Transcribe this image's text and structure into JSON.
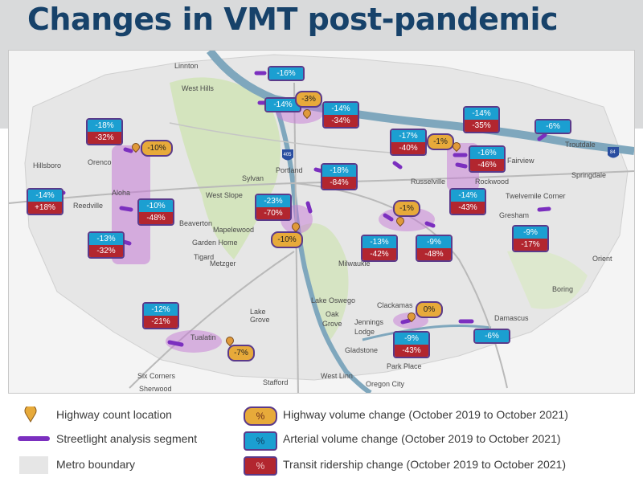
{
  "title": "Changes in VMT post-pandemic",
  "places": {
    "linnton": "Linnton",
    "west_hills": "West Hills",
    "hillsboro": "Hillsboro",
    "orenco": "Orenco",
    "aloha": "Aloha",
    "reedville": "Reedville",
    "beaverton": "Beaverton",
    "west_slope": "West Slope",
    "sylvan": "Sylvan",
    "portland": "Portland",
    "mapelewood": "Mapelewood",
    "garden_home": "Garden Home",
    "metzger": "Metzger",
    "tigard": "Tigard",
    "tualatin": "Tualatin",
    "lake_grove": "Lake\nGrove",
    "lake_oswego": "Lake Oswego",
    "oak_grove": "Oak\nGrove",
    "milwaukie": "Milwaukie",
    "russelville": "Russelville",
    "rockwood": "Rockwood",
    "fairview": "Fairview",
    "troutdale": "Troutdale",
    "springdale": "Springdale",
    "twelvemile_corner": "Twelvemile Corner",
    "gresham": "Gresham",
    "orient": "Orient",
    "boring": "Boring",
    "damascus": "Damascus",
    "clackamas": "Clackamas",
    "jennings_lodge": "Jennings\nLodge",
    "gladstone": "Gladstone",
    "park_place": "Park Place",
    "west_linn": "West Linn",
    "oregon_city": "Oregon City",
    "stafford": "Stafford",
    "six_corners": "Six Corners",
    "sherwood": "Sherwood"
  },
  "shields": {
    "i405": "405",
    "i84": "84"
  },
  "badges": {
    "b1": {
      "arterial": "-18%",
      "transit": "-32%"
    },
    "b2": {
      "arterial": "-14%",
      "transit": "+18%"
    },
    "b3": {
      "arterial": "-10%",
      "transit": "-48%"
    },
    "b4": {
      "arterial": "-13%",
      "transit": "-32%"
    },
    "b5": {
      "arterial": "-14%",
      "transit": "-34%"
    },
    "b6": {
      "arterial": "-18%",
      "transit": "-84%"
    },
    "b7": {
      "arterial": "-23%",
      "transit": "-70%"
    },
    "b8": {
      "arterial": "-17%",
      "transit": "-40%"
    },
    "b9": {
      "arterial": "-14%",
      "transit": "-35%"
    },
    "b10": {
      "arterial": "-16%",
      "transit": "-46%"
    },
    "b11": {
      "arterial": "-14%",
      "transit": "-43%"
    },
    "b12": {
      "arterial": "-13%",
      "transit": "-42%"
    },
    "b13": {
      "arterial": "-9%",
      "transit": "-48%"
    },
    "b14": {
      "arterial": "-9%",
      "transit": "-17%"
    },
    "b15": {
      "arterial": "-12%",
      "transit": "-21%"
    },
    "b16": {
      "arterial": "-9%",
      "transit": "-43%"
    }
  },
  "arterial_only": {
    "a1": "-16%",
    "a2": "-14%",
    "a3": "-6%",
    "a4": "-6%"
  },
  "highway": {
    "h1": "-10%",
    "h2": "-3%",
    "h3": "-1%",
    "h4": "-1%",
    "h5": "-10%",
    "h6": "0%",
    "h7": "-7%"
  },
  "legend": {
    "count_location": "Highway count location",
    "streetlight": "Streetlight analysis segment",
    "metro": "Metro boundary",
    "pct": "%",
    "highway_change": "Highway volume change (October 2019 to October 2021)",
    "arterial_change": "Arterial volume change (October 2019 to October 2021)",
    "transit_change": "Transit ridership change (October 2019 to October 2021)"
  },
  "colors": {
    "title": "#17426a",
    "arterial": "#1b9fd1",
    "transit": "#b2262f",
    "highway": "#e7aa3a",
    "segment": "#7b2fbf",
    "river": "#7fa7bd",
    "park": "#cfe3b4"
  }
}
